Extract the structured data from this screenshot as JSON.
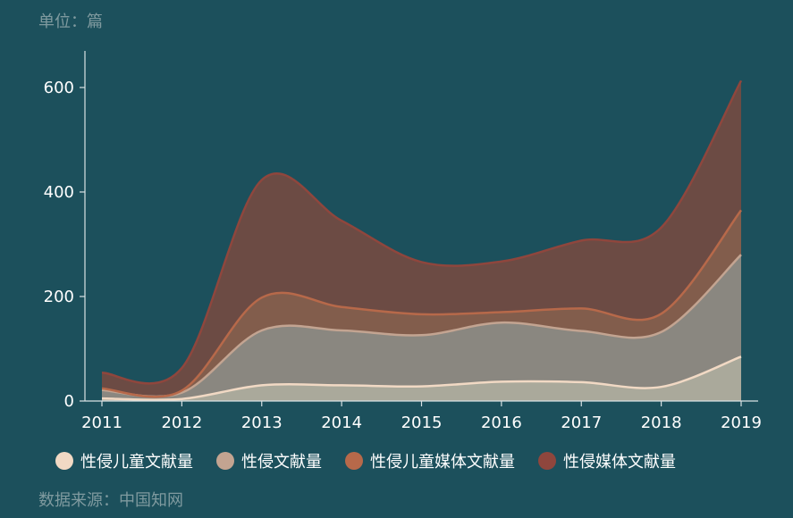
{
  "unit_label": "单位：篇",
  "source_label": "数据来源：中国知网",
  "chart_data": {
    "type": "area",
    "stacked": true,
    "x": [
      "2011",
      "2012",
      "2013",
      "2014",
      "2015",
      "2016",
      "2017",
      "2018",
      "2019"
    ],
    "ylim": [
      0,
      670
    ],
    "yticks": [
      0,
      200,
      400,
      600
    ],
    "grid": false,
    "legend_position": "bottom",
    "series": [
      {
        "name": "性侵儿童文献量",
        "values": [
          5,
          4,
          30,
          30,
          28,
          37,
          36,
          27,
          85
        ],
        "color": "#f1d9c4",
        "fill": "#aaa99b"
      },
      {
        "name": "性侵文献量",
        "values": [
          16,
          12,
          105,
          105,
          98,
          113,
          98,
          105,
          195
        ],
        "color": "#c3a491",
        "fill": "#8a8780"
      },
      {
        "name": "性侵儿童媒体文献量",
        "values": [
          3,
          4,
          63,
          45,
          40,
          20,
          43,
          35,
          85
        ],
        "color": "#b7694a",
        "fill": "#825d4c"
      },
      {
        "name": "性侵媒体文献量",
        "values": [
          30,
          43,
          225,
          165,
          100,
          97,
          130,
          165,
          248
        ],
        "color": "#8f463d",
        "fill": "#6c4b44"
      }
    ]
  }
}
